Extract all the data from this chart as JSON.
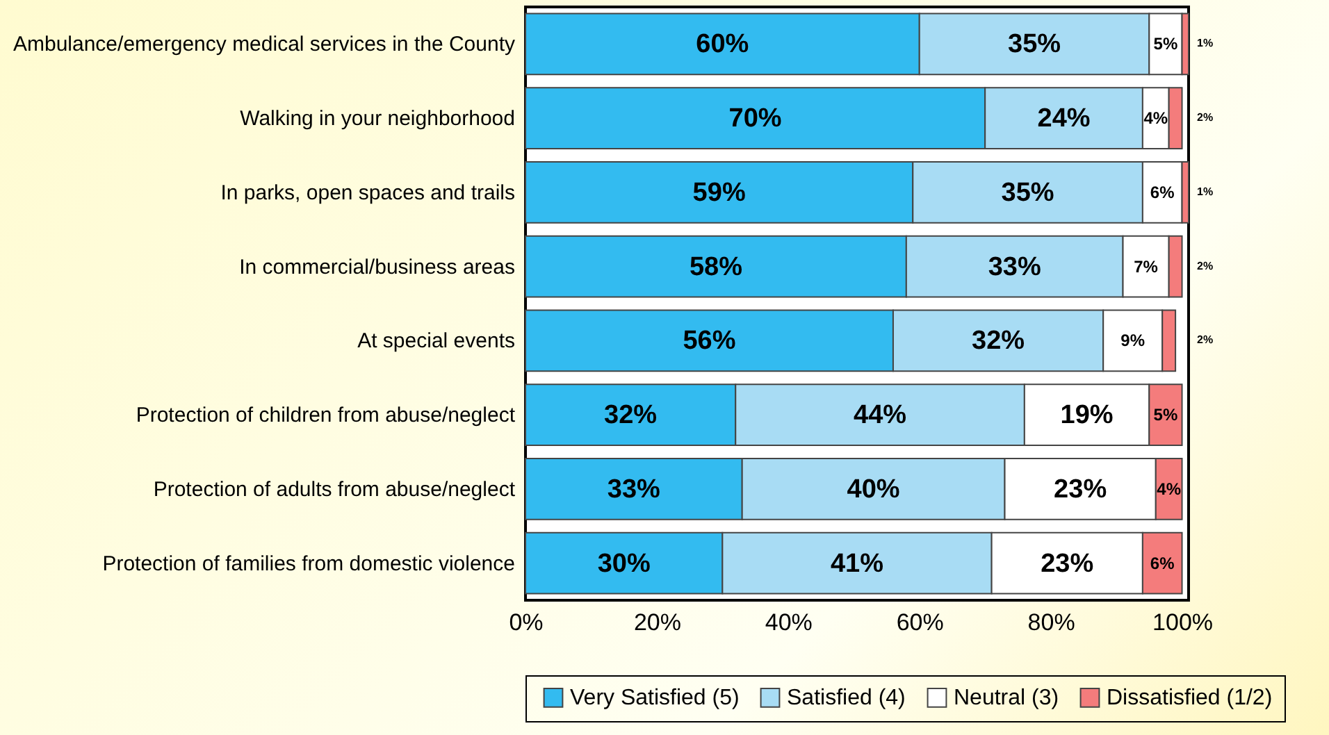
{
  "chart_data": {
    "type": "bar",
    "orientation": "horizontal",
    "stacked": true,
    "categories": [
      "Ambulance/emergency medical services in the County",
      "Walking in your neighborhood",
      "In parks, open spaces and trails",
      "In commercial/business areas",
      "At special events",
      "Protection of children from abuse/neglect",
      "Protection of adults from abuse/neglect",
      "Protection of families from domestic violence"
    ],
    "series": [
      {
        "name": "Very Satisfied (5)",
        "color": "#33bbf0",
        "values": [
          60,
          70,
          59,
          58,
          56,
          32,
          33,
          30
        ],
        "value_labels": [
          "60%",
          "70%",
          "59%",
          "58%",
          "56%",
          "32%",
          "33%",
          "30%"
        ]
      },
      {
        "name": "Satisfied (4)",
        "color": "#a8dcf4",
        "values": [
          35,
          24,
          35,
          33,
          32,
          44,
          40,
          41
        ],
        "value_labels": [
          "35%",
          "24%",
          "35%",
          "33%",
          "32%",
          "44%",
          "40%",
          "41%"
        ]
      },
      {
        "name": "Neutral (3)",
        "color": "#ffffff",
        "values": [
          5,
          4,
          6,
          7,
          9,
          19,
          23,
          23
        ],
        "value_labels": [
          "5%",
          "4%",
          "6%",
          "7%",
          "9%",
          "19%",
          "23%",
          "23%"
        ]
      },
      {
        "name": "Dissatisfied (1/2)",
        "color": "#f47c7c",
        "values": [
          1,
          2,
          1,
          2,
          2,
          5,
          4,
          6
        ],
        "value_labels": [
          "1%",
          "2%",
          "1%",
          "2%",
          "2%",
          "5%",
          "4%",
          "6%"
        ]
      }
    ],
    "xlim": [
      0,
      101
    ],
    "xticks": [
      {
        "value": 0,
        "label": "0%"
      },
      {
        "value": 20,
        "label": "20%"
      },
      {
        "value": 40,
        "label": "40%"
      },
      {
        "value": 60,
        "label": "60%"
      },
      {
        "value": 80,
        "label": "80%"
      },
      {
        "value": 100,
        "label": "100%"
      }
    ],
    "legend": "bottom",
    "grid": false
  }
}
